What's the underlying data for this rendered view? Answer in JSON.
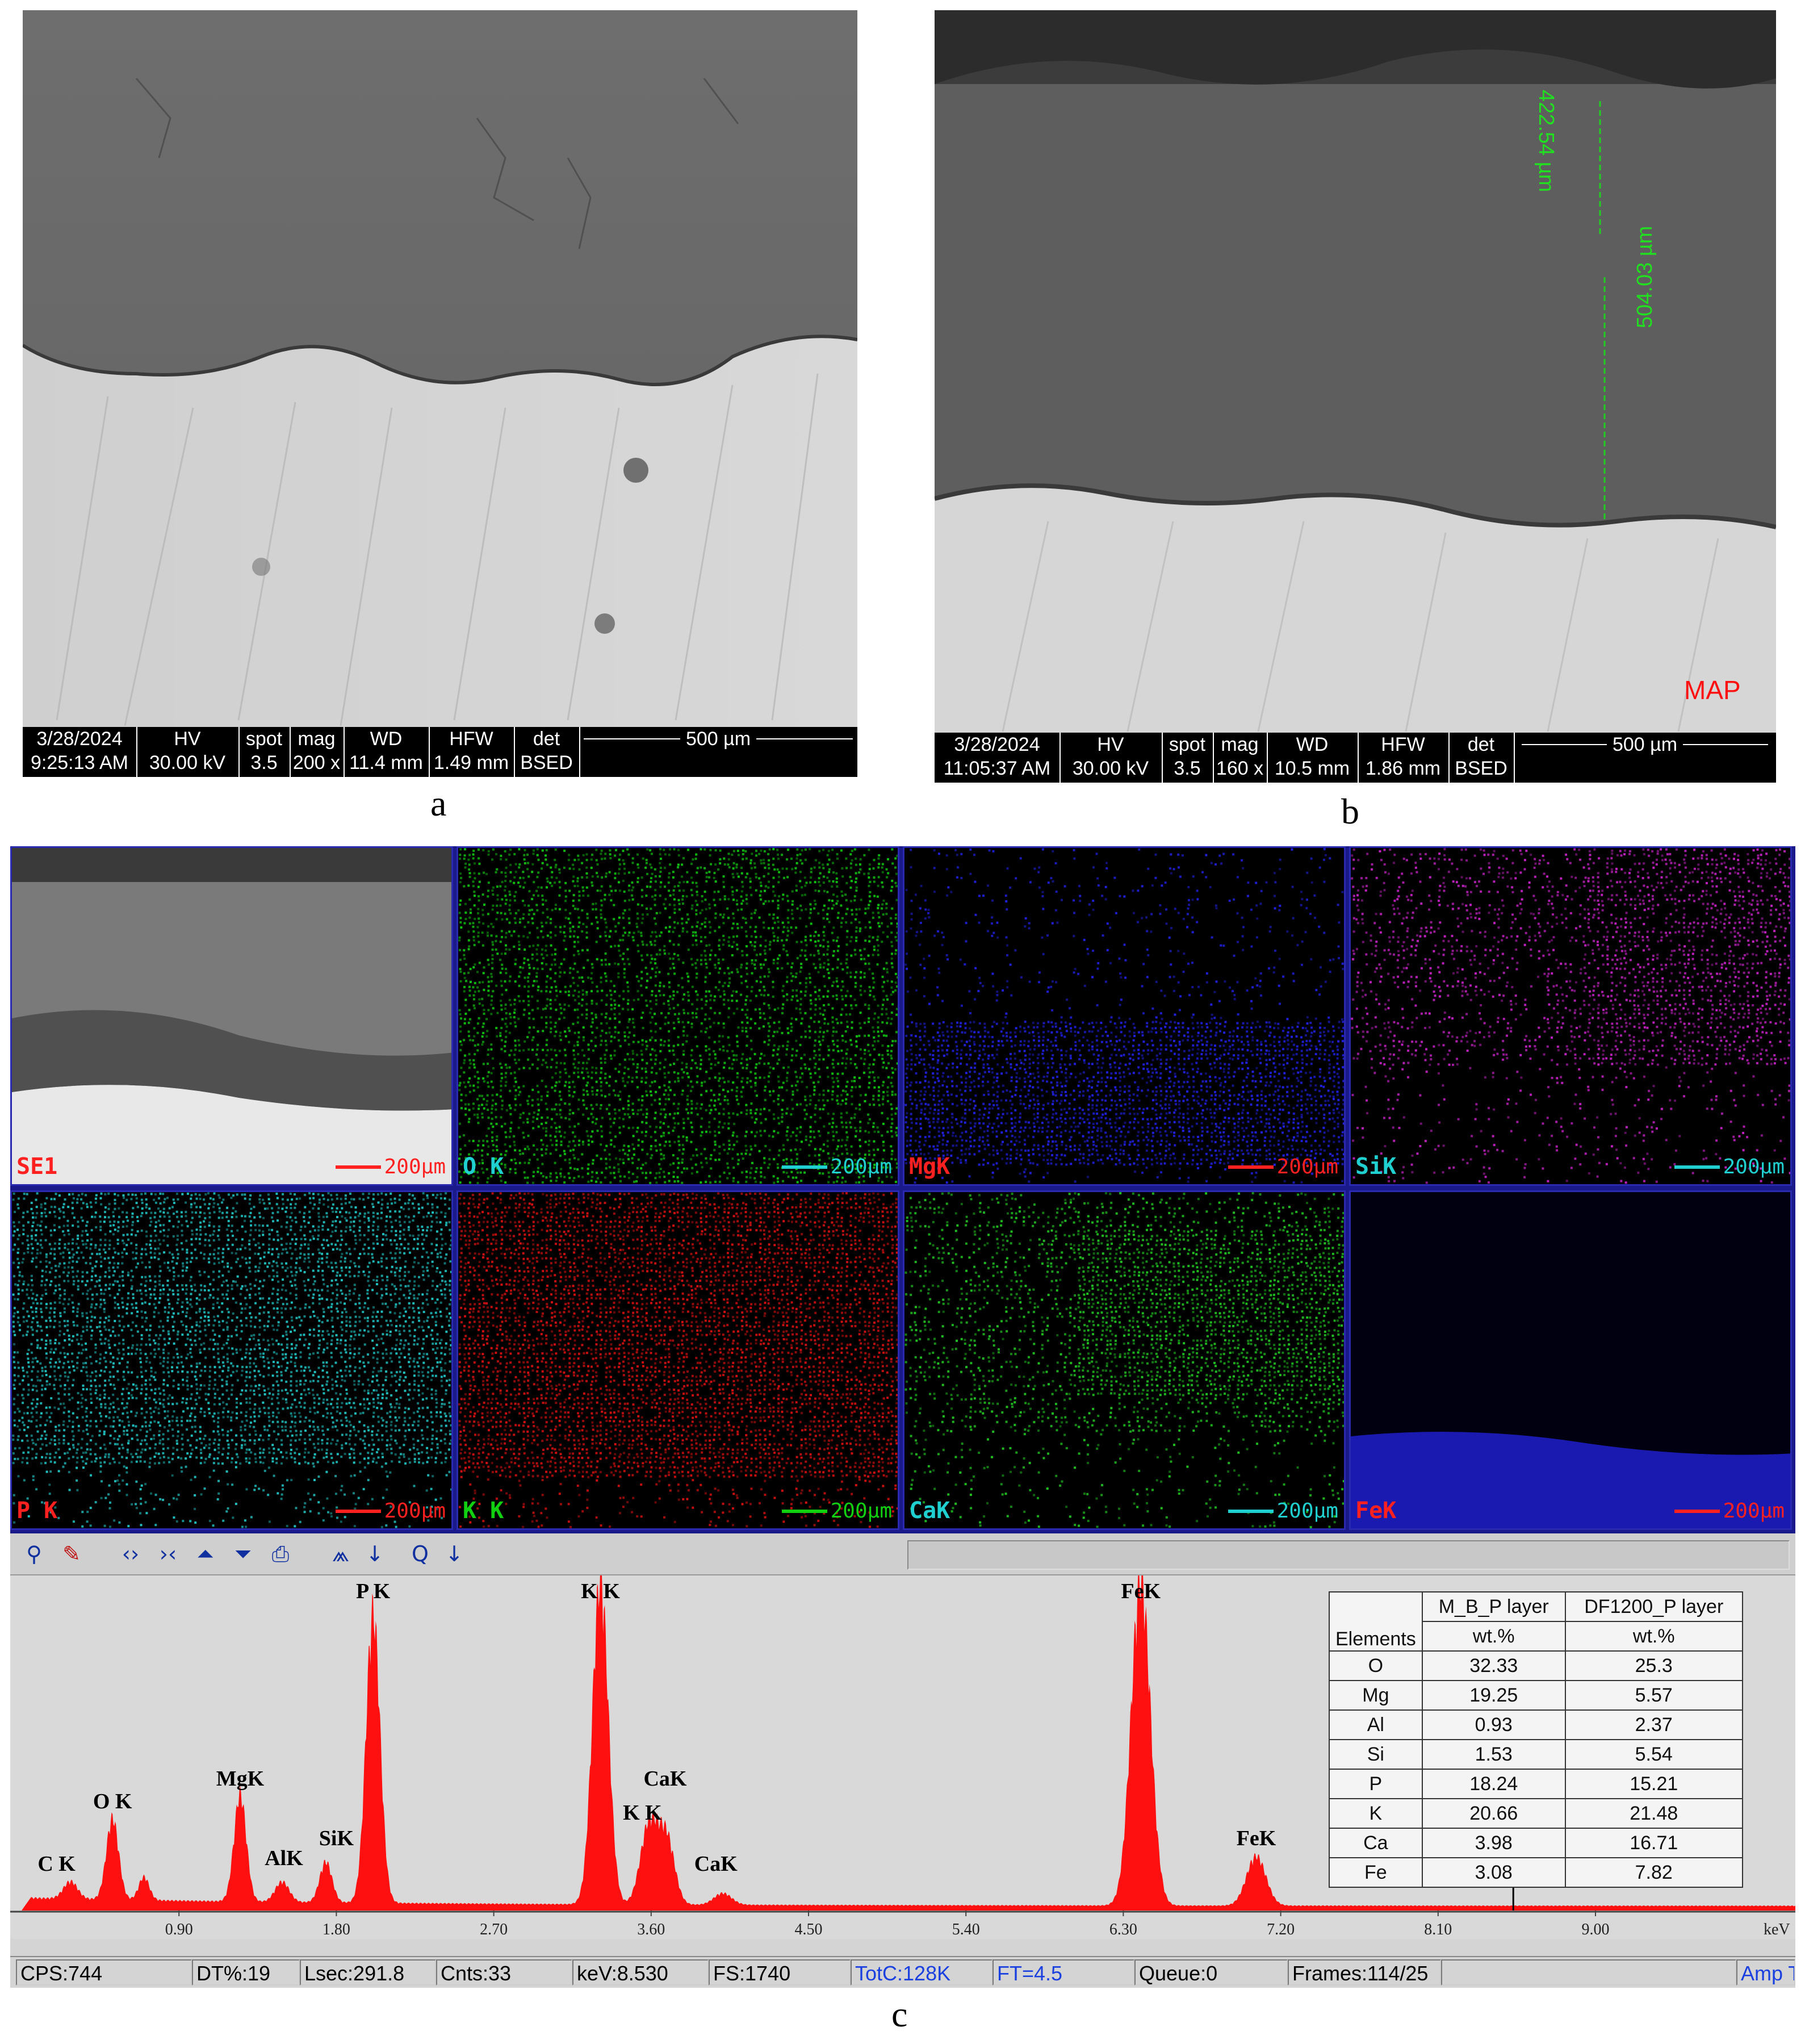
{
  "panel_a": {
    "bar": {
      "date": "3/28/2024",
      "time": "9:25:13 AM",
      "hv_label": "HV",
      "hv": "30.00 kV",
      "spot_label": "spot",
      "spot": "3.5",
      "mag_label": "mag",
      "mag": "200 x",
      "wd_label": "WD",
      "wd": "11.4 mm",
      "hfw_label": "HFW",
      "hfw": "1.49 mm",
      "det_label": "det",
      "det": "BSED",
      "scale": "500 µm"
    },
    "caption": "a"
  },
  "panel_b": {
    "bar": {
      "date": "3/28/2024",
      "time": "11:05:37 AM",
      "hv_label": "HV",
      "hv": "30.00 kV",
      "spot_label": "spot",
      "spot": "3.5",
      "mag_label": "mag",
      "mag": "160 x",
      "wd_label": "WD",
      "wd": "10.5 mm",
      "hfw_label": "HFW",
      "hfw": "1.86 mm",
      "det_label": "det",
      "det": "BSED",
      "scale": "500 µm"
    },
    "measure_1": "422.54 µm",
    "measure_2": "504.03 µm",
    "map_label": "MAP",
    "caption": "b"
  },
  "maps": {
    "tiles": [
      {
        "label": "SE1",
        "scale": "200µm",
        "label_color": "#ff2020",
        "scale_color": "#ff2020",
        "tint": "gray"
      },
      {
        "label": "O K",
        "scale": "200µm",
        "label_color": "#20d0d0",
        "scale_color": "#20d0d0",
        "tint": "#10c010"
      },
      {
        "label": "MgK",
        "scale": "200µm",
        "label_color": "#ff2020",
        "scale_color": "#ff2020",
        "tint": "#2020e0"
      },
      {
        "label": "SiK",
        "scale": "200µm",
        "label_color": "#20d0d0",
        "scale_color": "#20d0d0",
        "tint": "#c020c0"
      },
      {
        "label": "P K",
        "scale": "200µm",
        "label_color": "#ff2020",
        "scale_color": "#ff2020",
        "tint": "#20c0c0"
      },
      {
        "label": "K K",
        "scale": "200µm",
        "label_color": "#10d010",
        "scale_color": "#10d010",
        "tint": "#d01010"
      },
      {
        "label": "CaK",
        "scale": "200µm",
        "label_color": "#20d0d0",
        "scale_color": "#20d0d0",
        "tint": "#20c020"
      },
      {
        "label": "FeK",
        "scale": "200µm",
        "label_color": "#ff2020",
        "scale_color": "#ff2020",
        "tint": "#2020d0"
      }
    ]
  },
  "spectrum": {
    "x_ticks": [
      "0.90",
      "1.80",
      "2.70",
      "3.60",
      "4.50",
      "5.40",
      "6.30",
      "7.20",
      "8.10",
      "9.00"
    ],
    "x_unit": "keV",
    "peak_labels": [
      "C K",
      "O K",
      "MgK",
      "AlK",
      "SiK",
      "P K",
      "K K",
      "K K",
      "CaK",
      "CaK",
      "FeK",
      "FeK"
    ],
    "status": {
      "cps": "CPS:744",
      "dt": "DT%:19",
      "lsec": "Lsec:291.8",
      "cnts": "Cnts:33",
      "kev": "keV:8.530",
      "fs": "FS:1740",
      "totc": "TotC:128K",
      "ft": "FT=4.5",
      "queue": "Queue:0",
      "frames": "Frames:114/25",
      "amp": "Amp T"
    },
    "caption": "c"
  },
  "table": {
    "col1_header": "Elements",
    "col2_header": "M_B_P layer",
    "col3_header": "DF1200_P layer",
    "unit": "wt.%",
    "rows": [
      {
        "el": "O",
        "a": "32.33",
        "b": "25.3"
      },
      {
        "el": "Mg",
        "a": "19.25",
        "b": "5.57"
      },
      {
        "el": "Al",
        "a": "0.93",
        "b": "2.37"
      },
      {
        "el": "Si",
        "a": "1.53",
        "b": "5.54"
      },
      {
        "el": "P",
        "a": "18.24",
        "b": "15.21"
      },
      {
        "el": "K",
        "a": "20.66",
        "b": "21.48"
      },
      {
        "el": "Ca",
        "a": "3.98",
        "b": "16.71"
      },
      {
        "el": "Fe",
        "a": "3.08",
        "b": "7.82"
      }
    ]
  }
}
